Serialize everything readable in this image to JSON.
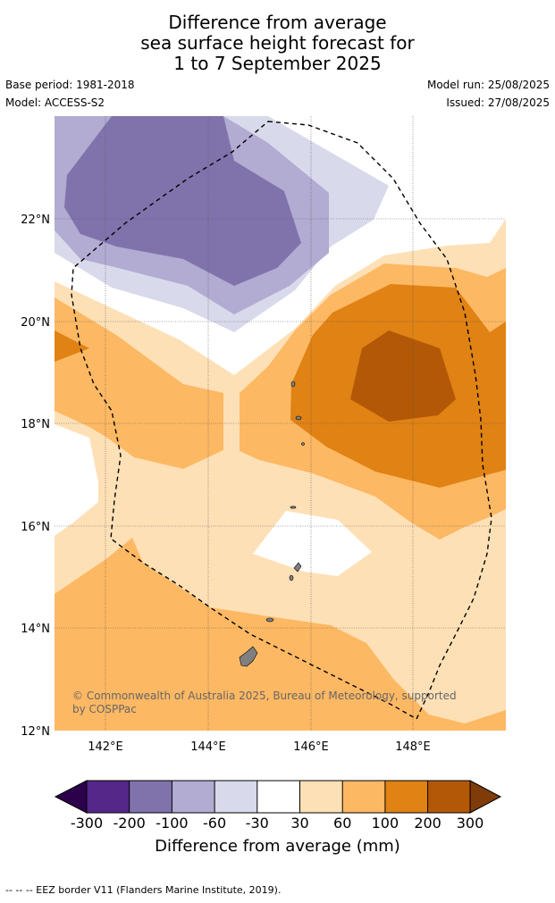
{
  "title": {
    "line1": "Difference from average",
    "line2": "sea surface height forecast for",
    "line3": "1 to 7 September 2025"
  },
  "meta": {
    "base_period": "Base period: 1981-2018",
    "model": "Model: ACCESS-S2",
    "model_run": "Model run: 25/08/2025",
    "issued": "Issued: 27/08/2025"
  },
  "map": {
    "lon_range": [
      141,
      149.8
    ],
    "lat_range": [
      12,
      24
    ],
    "lon_ticks": [
      "142°E",
      "144°E",
      "146°E",
      "148°E"
    ],
    "lat_ticks": [
      "12°N",
      "14°N",
      "16°N",
      "18°N",
      "20°N",
      "22°N"
    ],
    "grid": true,
    "copyright": "© Commonwealth of Australia 2025, Bureau of Meteorology, supported by COSPPac"
  },
  "colorbar": {
    "label": "Difference from average (mm)",
    "ticks": [
      "-300",
      "-200",
      "-100",
      "-60",
      "-30",
      "30",
      "60",
      "100",
      "200",
      "300"
    ],
    "colors": [
      "#2d004b",
      "#542788",
      "#8073ac",
      "#b2abd2",
      "#d8daeb",
      "#ffffff",
      "#fee0b6",
      "#fdb863",
      "#e08214",
      "#b35806",
      "#7f3b08"
    ]
  },
  "footnote": "--  --  -- EEZ border V11 (Flanders Marine Institute, 2019)."
}
